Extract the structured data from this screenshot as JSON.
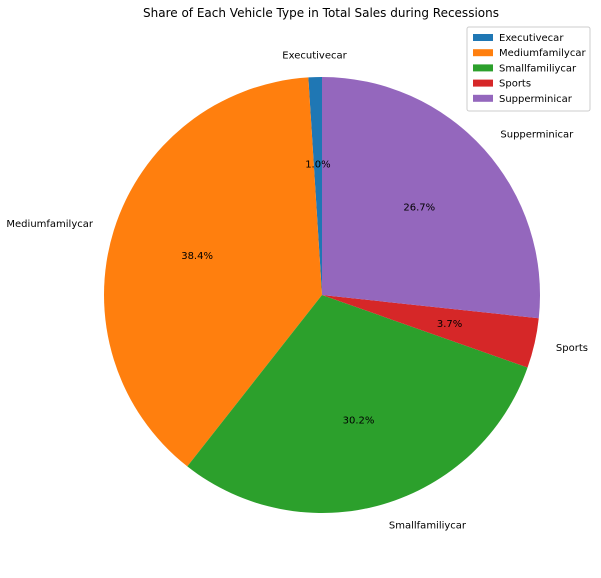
{
  "chart_data": {
    "type": "pie",
    "title": "Share of Each Vehicle Type in Total Sales during Recessions",
    "start_angle_deg": 90,
    "direction": "counterclockwise",
    "legend_position": "top-right",
    "slices": [
      {
        "label": "Executivecar",
        "value": 1.0,
        "pct_label": "1.0%",
        "color": "#1f77b4"
      },
      {
        "label": "Mediumfamilycar",
        "value": 38.4,
        "pct_label": "38.4%",
        "color": "#ff7f0e"
      },
      {
        "label": "Smallfamiliycar",
        "value": 30.2,
        "pct_label": "30.2%",
        "color": "#2ca02c"
      },
      {
        "label": "Sports",
        "value": 3.7,
        "pct_label": "3.7%",
        "color": "#d62728"
      },
      {
        "label": "Supperminicar",
        "value": 26.7,
        "pct_label": "26.7%",
        "color": "#9467bd"
      }
    ]
  }
}
